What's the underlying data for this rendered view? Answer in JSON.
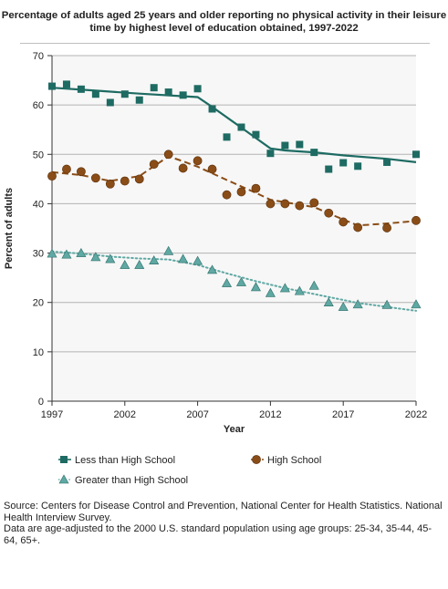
{
  "chart_data": {
    "type": "scatter",
    "title": "Percentage of adults aged 25 years and older reporting no physical activity in their leisure time by highest level of education obtained, 1997-2022",
    "xlabel": "Year",
    "ylabel": "Percent of adults",
    "xlim": [
      1997,
      2022
    ],
    "ylim": [
      0,
      70
    ],
    "xticks": [
      1997,
      2002,
      2007,
      2012,
      2017,
      2022
    ],
    "yticks": [
      0,
      10,
      20,
      30,
      40,
      50,
      60,
      70
    ],
    "grid": "horizontal",
    "legend_position": "bottom",
    "series": [
      {
        "name": "Less than High School",
        "color": "#1e6b63",
        "marker": "square",
        "trend_style": "solid",
        "points": [
          [
            1997,
            63.8
          ],
          [
            1998,
            64.2
          ],
          [
            1999,
            63.2
          ],
          [
            2000,
            62.2
          ],
          [
            2001,
            60.5
          ],
          [
            2002,
            62.2
          ],
          [
            2003,
            61.0
          ],
          [
            2004,
            63.5
          ],
          [
            2005,
            62.6
          ],
          [
            2006,
            62.0
          ],
          [
            2007,
            63.3
          ],
          [
            2008,
            59.2
          ],
          [
            2009,
            53.5
          ],
          [
            2010,
            55.5
          ],
          [
            2011,
            54.0
          ],
          [
            2012,
            50.2
          ],
          [
            2013,
            51.8
          ],
          [
            2014,
            52.0
          ],
          [
            2015,
            50.4
          ],
          [
            2016,
            47.0
          ],
          [
            2017,
            48.3
          ],
          [
            2018,
            47.6
          ],
          [
            2020,
            48.4
          ],
          [
            2022,
            50.0
          ]
        ],
        "trend": [
          [
            1997,
            63.5
          ],
          [
            2000,
            62.9
          ],
          [
            2003,
            62.3
          ],
          [
            2007,
            61.6
          ],
          [
            2008,
            59.6
          ],
          [
            2010,
            55.4
          ],
          [
            2012,
            51.2
          ],
          [
            2013,
            50.8
          ],
          [
            2015,
            50.4
          ],
          [
            2017,
            49.8
          ],
          [
            2020,
            49.1
          ],
          [
            2022,
            48.4
          ]
        ]
      },
      {
        "name": "High School",
        "color": "#8a4d17",
        "marker": "circle",
        "trend_style": "dashed",
        "points": [
          [
            1997,
            45.6
          ],
          [
            1998,
            47.0
          ],
          [
            1999,
            46.5
          ],
          [
            2000,
            45.2
          ],
          [
            2001,
            44.0
          ],
          [
            2002,
            44.6
          ],
          [
            2003,
            45.0
          ],
          [
            2004,
            48.0
          ],
          [
            2005,
            50.0
          ],
          [
            2006,
            47.2
          ],
          [
            2007,
            48.7
          ],
          [
            2008,
            47.0
          ],
          [
            2009,
            41.8
          ],
          [
            2010,
            42.4
          ],
          [
            2011,
            43.1
          ],
          [
            2012,
            40.0
          ],
          [
            2013,
            40.0
          ],
          [
            2014,
            39.6
          ],
          [
            2015,
            40.2
          ],
          [
            2016,
            38.1
          ],
          [
            2017,
            36.3
          ],
          [
            2018,
            35.2
          ],
          [
            2020,
            35.1
          ],
          [
            2022,
            36.6
          ]
        ],
        "trend": [
          [
            1997,
            46.4
          ],
          [
            1999,
            45.8
          ],
          [
            2001,
            44.6
          ],
          [
            2003,
            45.6
          ],
          [
            2005,
            49.6
          ],
          [
            2006,
            48.6
          ],
          [
            2007,
            47.5
          ],
          [
            2009,
            44.8
          ],
          [
            2011,
            42.2
          ],
          [
            2012,
            40.8
          ],
          [
            2015,
            39.3
          ],
          [
            2017,
            36.8
          ],
          [
            2018,
            35.6
          ],
          [
            2020,
            36.0
          ],
          [
            2022,
            36.5
          ]
        ]
      },
      {
        "name": "Greater than High School",
        "color": "#5fa8a3",
        "marker": "triangle",
        "trend_style": "dotted",
        "points": [
          [
            1997,
            29.9
          ],
          [
            1998,
            29.7
          ],
          [
            1999,
            30.0
          ],
          [
            2000,
            29.2
          ],
          [
            2001,
            28.8
          ],
          [
            2002,
            27.6
          ],
          [
            2003,
            27.6
          ],
          [
            2004,
            28.5
          ],
          [
            2005,
            30.4
          ],
          [
            2006,
            28.8
          ],
          [
            2007,
            28.4
          ],
          [
            2008,
            26.6
          ],
          [
            2009,
            23.9
          ],
          [
            2010,
            24.1
          ],
          [
            2011,
            23.1
          ],
          [
            2012,
            21.9
          ],
          [
            2013,
            22.9
          ],
          [
            2014,
            22.3
          ],
          [
            2015,
            23.4
          ],
          [
            2016,
            20.0
          ],
          [
            2017,
            19.1
          ],
          [
            2018,
            19.6
          ],
          [
            2020,
            19.5
          ],
          [
            2022,
            19.6
          ]
        ],
        "trend": [
          [
            1997,
            30.3
          ],
          [
            1999,
            29.9
          ],
          [
            2001,
            29.3
          ],
          [
            2003,
            28.9
          ],
          [
            2005,
            28.7
          ],
          [
            2007,
            27.6
          ],
          [
            2009,
            25.9
          ],
          [
            2011,
            24.3
          ],
          [
            2013,
            22.9
          ],
          [
            2015,
            21.7
          ],
          [
            2017,
            20.5
          ],
          [
            2018,
            19.9
          ],
          [
            2020,
            19.1
          ],
          [
            2022,
            18.3
          ]
        ]
      }
    ]
  },
  "source": {
    "line1": "Source: Centers for Disease Control and Prevention, National Center for Health Statistics. National Health Interview Survey.",
    "line2": "Data are age-adjusted to the 2000 U.S. standard population using age groups: 25-34, 35-44, 45-64, 65+."
  }
}
